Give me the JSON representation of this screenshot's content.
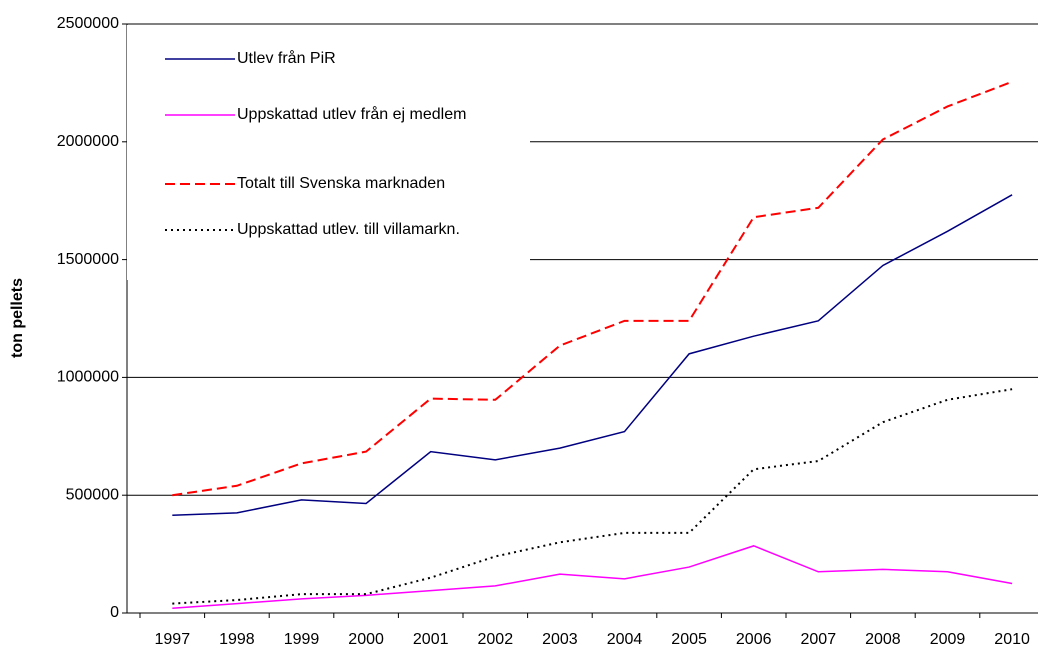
{
  "chart_data": {
    "type": "line",
    "y_label": "ton pellets",
    "categories": [
      "1997",
      "1998",
      "1999",
      "2000",
      "2001",
      "2002",
      "2003",
      "2004",
      "2005",
      "2006",
      "2007",
      "2008",
      "2009",
      "2010"
    ],
    "series": [
      {
        "name": "Utlev från PiR",
        "color": "#000080",
        "style": "solid",
        "values": [
          415000,
          425000,
          480000,
          465000,
          685000,
          650000,
          700000,
          770000,
          1100000,
          1175000,
          1240000,
          1475000,
          1620000,
          1775000
        ]
      },
      {
        "name": "Uppskattad utlev från ej medlem",
        "color": "#ff00ff",
        "style": "solid",
        "values": [
          20000,
          40000,
          60000,
          75000,
          95000,
          115000,
          165000,
          145000,
          195000,
          285000,
          175000,
          185000,
          175000,
          125000
        ]
      },
      {
        "name": "Totalt till Svenska marknaden",
        "color": "#ff0000",
        "style": "dashed",
        "values": [
          500000,
          540000,
          635000,
          685000,
          910000,
          905000,
          1135000,
          1240000,
          1240000,
          1680000,
          1720000,
          2010000,
          2150000,
          2255000
        ]
      },
      {
        "name": "Uppskattad utlev. till villamarkn.",
        "color": "#000000",
        "style": "dotted",
        "values": [
          40000,
          55000,
          80000,
          80000,
          150000,
          240000,
          300000,
          340000,
          340000,
          610000,
          645000,
          810000,
          905000,
          950000
        ]
      }
    ],
    "ylim": [
      0,
      2500000
    ],
    "yticks": [
      0,
      500000,
      1000000,
      1500000,
      2000000,
      2500000
    ],
    "grid": true,
    "legend": "upper-left"
  }
}
